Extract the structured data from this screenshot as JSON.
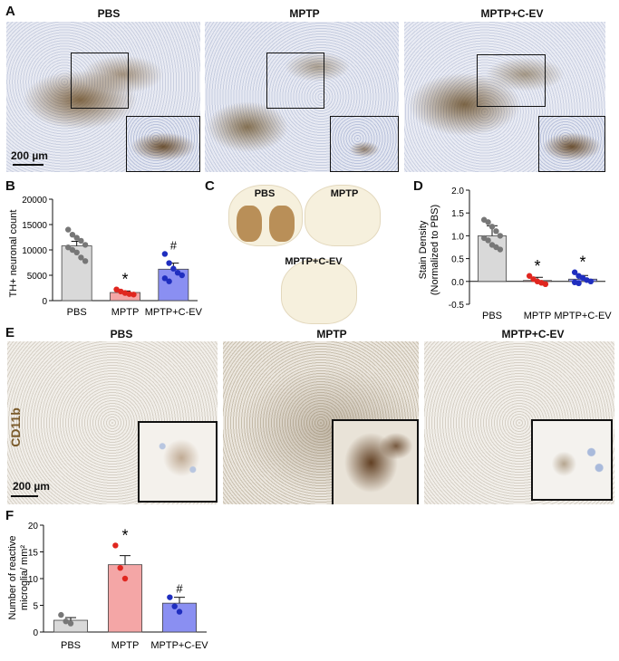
{
  "panels": {
    "A": {
      "letter": "A",
      "conditions": [
        "PBS",
        "MPTP",
        "MPTP+C-EV"
      ],
      "scale_bar": "200 µm"
    },
    "B": {
      "letter": "B",
      "ylabel": "TH+ neuronal count",
      "yticks": [
        "0",
        "5000",
        "10000",
        "15000",
        "20000"
      ],
      "categories": [
        "PBS",
        "MPTP",
        "MPTP+C-EV"
      ],
      "annotations": [
        "*",
        "#"
      ]
    },
    "C": {
      "letter": "C",
      "labels": [
        "PBS",
        "MPTP",
        "MPTP+C-EV"
      ]
    },
    "D": {
      "letter": "D",
      "ylabel": "Stain Density",
      "ylabel2": "(Normalized to PBS)",
      "yticks": [
        "-0.5",
        "0.0",
        "0.5",
        "1.0",
        "1.5",
        "2.0"
      ],
      "categories": [
        "PBS",
        "MPTP",
        "MPTP+C-EV"
      ],
      "annotations": [
        "*",
        "*"
      ]
    },
    "E": {
      "letter": "E",
      "conditions": [
        "PBS",
        "MPTP",
        "MPTP+C-EV"
      ],
      "stain_label": "CD11b",
      "scale_bar": "200 µm"
    },
    "F": {
      "letter": "F",
      "ylabel": "Number of reactive",
      "ylabel2": "microglia/ mm²",
      "yticks": [
        "0",
        "5",
        "10",
        "15",
        "20"
      ],
      "categories": [
        "PBS",
        "MPTP",
        "MPTP+C-EV"
      ],
      "annotations": [
        "*",
        "#"
      ]
    }
  },
  "chart_data": [
    {
      "panel": "B",
      "type": "bar",
      "categories": [
        "PBS",
        "MPTP",
        "MPTP+C-EV"
      ],
      "values": [
        10800,
        1600,
        6200
      ],
      "errors": [
        900,
        300,
        1200
      ],
      "points": [
        [
          14000,
          13000,
          12400,
          11800,
          11000,
          10500,
          10000,
          9500,
          8500,
          7800
        ],
        [
          2200,
          1800,
          1500,
          1300,
          1200
        ],
        [
          9200,
          7400,
          6300,
          5500,
          5000,
          4400,
          3800
        ]
      ],
      "colors": [
        "#d9d9d9",
        "#f4a6a6",
        "#8a8ff2"
      ],
      "point_colors": [
        "#777777",
        "#e0261f",
        "#1f2ebf"
      ],
      "ylim": [
        0,
        20000
      ],
      "ylabel": "TH+ neuronal count"
    },
    {
      "panel": "D",
      "type": "bar",
      "categories": [
        "PBS",
        "MPTP",
        "MPTP+C-EV"
      ],
      "values": [
        1.0,
        0.02,
        0.05
      ],
      "errors": [
        0.22,
        0.07,
        0.08
      ],
      "points": [
        [
          1.35,
          1.3,
          1.2,
          1.1,
          1.0,
          0.95,
          0.9,
          0.8,
          0.75,
          0.7
        ],
        [
          0.12,
          0.05,
          0.0,
          -0.03,
          -0.06
        ],
        [
          0.2,
          0.12,
          0.08,
          0.03,
          0.0,
          -0.02,
          -0.04
        ]
      ],
      "colors": [
        "#d9d9d9",
        "#f4a6a6",
        "#8a8ff2"
      ],
      "point_colors": [
        "#777777",
        "#e0261f",
        "#1f2ebf"
      ],
      "ylim": [
        -0.5,
        2.0
      ],
      "ylabel": "Stain Density (Normalized to PBS)"
    },
    {
      "panel": "F",
      "type": "bar",
      "categories": [
        "PBS",
        "MPTP",
        "MPTP+C-EV"
      ],
      "values": [
        2.2,
        12.6,
        5.4
      ],
      "errors": [
        0.5,
        1.7,
        1.1
      ],
      "points": [
        [
          3.2,
          2.0,
          1.6
        ],
        [
          16.2,
          12.0,
          10.0
        ],
        [
          6.5,
          4.8,
          3.8
        ]
      ],
      "colors": [
        "#d9d9d9",
        "#f4a6a6",
        "#8a8ff2"
      ],
      "point_colors": [
        "#777777",
        "#e0261f",
        "#1f2ebf"
      ],
      "ylim": [
        0,
        20
      ],
      "ylabel": "Number of reactive microglia/ mm²"
    }
  ]
}
